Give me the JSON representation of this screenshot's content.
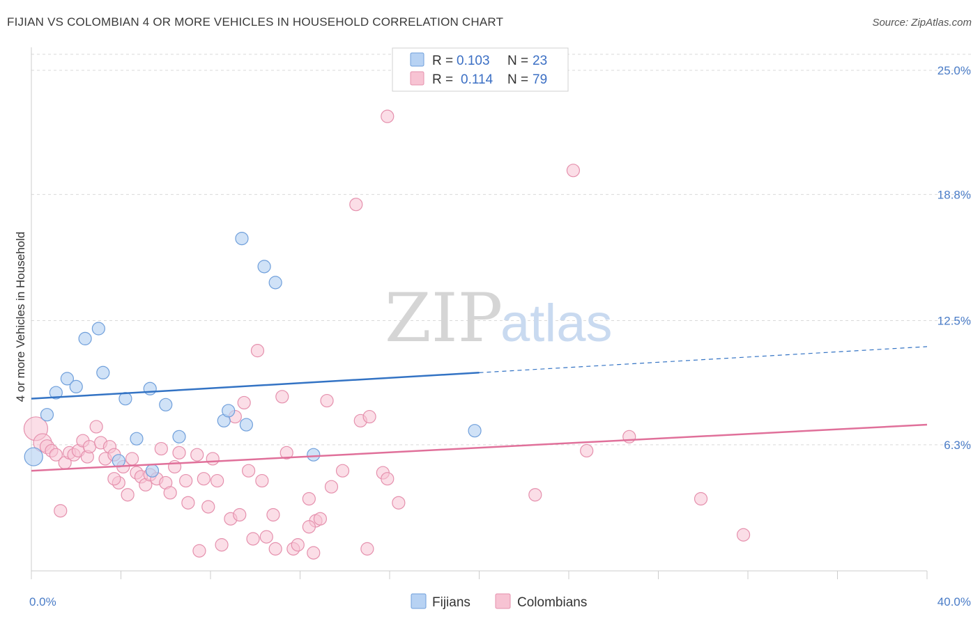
{
  "title": "FIJIAN VS COLOMBIAN 4 OR MORE VEHICLES IN HOUSEHOLD CORRELATION CHART",
  "source": "Source: ZipAtlas.com",
  "watermark": {
    "zip": "ZIP",
    "atlas": "atlas"
  },
  "colors": {
    "fijian_fill": "#b7d2f3",
    "fijian_stroke": "#6f9fdb",
    "fijian_line": "#3373c4",
    "colombian_fill": "#f7c3d3",
    "colombian_stroke": "#e590ad",
    "colombian_line": "#e0709a",
    "grid": "#d9d9d9",
    "tick_label": "#4a7cc7"
  },
  "legend": {
    "rows": [
      {
        "r_label": "R =",
        "r_value": "0.103",
        "n_label": "N =",
        "n_value": "23"
      },
      {
        "r_label": "R =",
        "r_value": "0.114",
        "n_label": "N =",
        "n_value": "79"
      }
    ]
  },
  "chart_data": {
    "type": "scatter",
    "title": "FIJIAN VS COLOMBIAN 4 OR MORE VEHICLES IN HOUSEHOLD CORRELATION CHART",
    "xlabel": "",
    "ylabel": "4 or more Vehicles in Household",
    "xlim": [
      0,
      40
    ],
    "ylim": [
      0,
      25.8
    ],
    "x_tick_labels": [
      {
        "value": 0,
        "label": "0.0%"
      },
      {
        "value": 40,
        "label": "40.0%"
      }
    ],
    "y_tick_labels": [
      {
        "value": 6.3,
        "label": "6.3%"
      },
      {
        "value": 12.5,
        "label": "12.5%"
      },
      {
        "value": 18.8,
        "label": "18.8%"
      },
      {
        "value": 25.0,
        "label": "25.0%"
      }
    ],
    "series": [
      {
        "name": "Fijians",
        "r": 0.103,
        "n": 23,
        "trend": {
          "x0": 0,
          "y0": 8.6,
          "x1": 20,
          "y1": 9.9,
          "x_dash_end": 40,
          "y_dash_end": 11.2
        },
        "points": [
          [
            0.1,
            5.7,
            26
          ],
          [
            0.7,
            7.8,
            18
          ],
          [
            1.1,
            8.9,
            18
          ],
          [
            1.6,
            9.6,
            18
          ],
          [
            2.0,
            9.2,
            18
          ],
          [
            2.4,
            11.6,
            18
          ],
          [
            3.0,
            12.1,
            18
          ],
          [
            3.2,
            9.9,
            18
          ],
          [
            3.9,
            5.5,
            18
          ],
          [
            4.2,
            8.6,
            18
          ],
          [
            4.7,
            6.6,
            18
          ],
          [
            5.3,
            9.1,
            18
          ],
          [
            5.4,
            5.0,
            18
          ],
          [
            6.0,
            8.3,
            18
          ],
          [
            6.6,
            6.7,
            18
          ],
          [
            8.6,
            7.5,
            18
          ],
          [
            8.8,
            8.0,
            18
          ],
          [
            9.4,
            16.6,
            18
          ],
          [
            9.6,
            7.3,
            18
          ],
          [
            10.4,
            15.2,
            18
          ],
          [
            10.9,
            14.4,
            18
          ],
          [
            12.6,
            5.8,
            18
          ],
          [
            19.8,
            7.0,
            18
          ]
        ]
      },
      {
        "name": "Colombians",
        "r": 0.114,
        "n": 79,
        "trend": {
          "x0": 0,
          "y0": 5.0,
          "x1": 40,
          "y1": 7.3
        },
        "points": [
          [
            0.2,
            7.1,
            34
          ],
          [
            0.5,
            6.4,
            26
          ],
          [
            0.7,
            6.2,
            20
          ],
          [
            0.9,
            6.0,
            18
          ],
          [
            1.1,
            5.8,
            18
          ],
          [
            1.3,
            3.0,
            18
          ],
          [
            1.5,
            5.4,
            18
          ],
          [
            1.7,
            5.9,
            18
          ],
          [
            1.9,
            5.8,
            18
          ],
          [
            2.1,
            6.0,
            18
          ],
          [
            2.3,
            6.5,
            18
          ],
          [
            2.5,
            5.7,
            18
          ],
          [
            2.6,
            6.2,
            18
          ],
          [
            2.9,
            7.2,
            18
          ],
          [
            3.1,
            6.4,
            18
          ],
          [
            3.3,
            5.6,
            18
          ],
          [
            3.5,
            6.2,
            18
          ],
          [
            3.7,
            5.8,
            18
          ],
          [
            3.9,
            4.4,
            18
          ],
          [
            4.1,
            5.2,
            18
          ],
          [
            4.3,
            3.8,
            18
          ],
          [
            4.5,
            5.6,
            18
          ],
          [
            4.7,
            4.9,
            18
          ],
          [
            4.9,
            4.7,
            18
          ],
          [
            5.1,
            4.3,
            18
          ],
          [
            5.3,
            4.8,
            18
          ],
          [
            5.6,
            4.6,
            18
          ],
          [
            5.8,
            6.1,
            18
          ],
          [
            6.0,
            4.4,
            18
          ],
          [
            6.2,
            3.9,
            18
          ],
          [
            6.4,
            5.2,
            18
          ],
          [
            6.6,
            5.9,
            18
          ],
          [
            6.9,
            4.5,
            18
          ],
          [
            7.0,
            3.4,
            18
          ],
          [
            7.4,
            5.8,
            18
          ],
          [
            7.7,
            4.6,
            18
          ],
          [
            7.9,
            3.2,
            18
          ],
          [
            8.1,
            5.6,
            18
          ],
          [
            8.3,
            4.5,
            18
          ],
          [
            8.5,
            1.3,
            18
          ],
          [
            8.9,
            2.6,
            18
          ],
          [
            9.1,
            7.7,
            18
          ],
          [
            9.3,
            2.8,
            18
          ],
          [
            9.5,
            8.4,
            18
          ],
          [
            9.7,
            5.0,
            18
          ],
          [
            9.9,
            1.6,
            18
          ],
          [
            10.1,
            11.0,
            18
          ],
          [
            10.3,
            4.5,
            18
          ],
          [
            10.5,
            1.7,
            18
          ],
          [
            10.8,
            2.8,
            18
          ],
          [
            10.9,
            1.1,
            18
          ],
          [
            11.2,
            8.7,
            18
          ],
          [
            11.4,
            5.9,
            18
          ],
          [
            11.7,
            1.1,
            18
          ],
          [
            11.9,
            1.3,
            18
          ],
          [
            12.4,
            3.6,
            18
          ],
          [
            12.6,
            0.9,
            18
          ],
          [
            12.7,
            2.5,
            18
          ],
          [
            12.9,
            2.6,
            18
          ],
          [
            13.2,
            8.5,
            18
          ],
          [
            13.4,
            4.2,
            18
          ],
          [
            13.9,
            5.0,
            18
          ],
          [
            14.5,
            18.3,
            18
          ],
          [
            14.7,
            7.5,
            18
          ],
          [
            15.0,
            1.1,
            18
          ],
          [
            15.1,
            7.7,
            18
          ],
          [
            15.7,
            4.9,
            18
          ],
          [
            15.9,
            4.6,
            18
          ],
          [
            15.9,
            22.7,
            18
          ],
          [
            16.4,
            3.4,
            18
          ],
          [
            22.5,
            3.8,
            18
          ],
          [
            24.2,
            20.0,
            18
          ],
          [
            24.8,
            6.0,
            18
          ],
          [
            26.7,
            6.7,
            18
          ],
          [
            29.9,
            3.6,
            18
          ],
          [
            31.8,
            1.8,
            18
          ],
          [
            12.4,
            2.2,
            18
          ],
          [
            7.5,
            1.0,
            18
          ],
          [
            3.7,
            4.6,
            18
          ]
        ]
      }
    ]
  }
}
